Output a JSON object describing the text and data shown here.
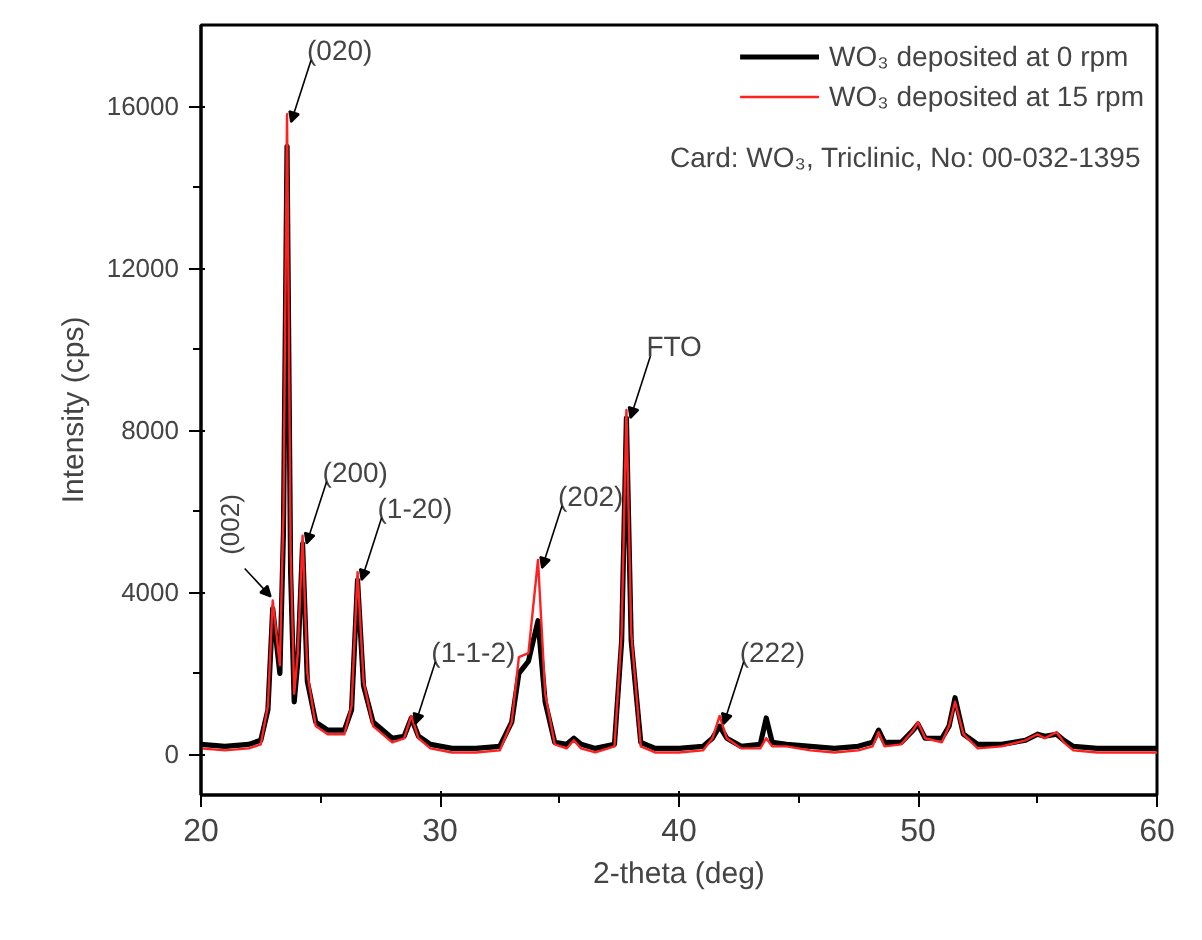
{
  "chart_data": {
    "type": "line",
    "xlabel": "2-theta (deg)",
    "ylabel": "Intensity (cps)",
    "x": [
      20,
      21,
      22,
      22.5,
      22.8,
      23.0,
      23.3,
      23.45,
      23.6,
      23.75,
      23.9,
      24.05,
      24.25,
      24.45,
      24.8,
      25.3,
      26,
      26.3,
      26.55,
      26.8,
      27.2,
      28,
      28.5,
      28.8,
      29.1,
      29.6,
      30.5,
      31.5,
      32.5,
      33.0,
      33.3,
      33.7,
      34.1,
      34.4,
      34.8,
      35.3,
      35.6,
      35.9,
      36.5,
      37.3,
      37.6,
      37.8,
      38.0,
      38.4,
      39,
      40,
      41,
      41.4,
      41.7,
      42.0,
      42.6,
      43.4,
      43.65,
      43.9,
      44.5,
      45.5,
      46.5,
      47.5,
      48.1,
      48.35,
      48.6,
      49.3,
      49.8,
      50.0,
      50.3,
      51.0,
      51.3,
      51.55,
      51.9,
      52.5,
      53.5,
      54.5,
      55.0,
      55.3,
      55.8,
      56.1,
      56.5,
      57.5,
      58.5,
      59.5,
      60
    ],
    "series": [
      {
        "name": "WO₃ deposited at 0 rpm",
        "color": "#000000",
        "values": [
          250,
          200,
          250,
          350,
          1100,
          3600,
          2000,
          5500,
          15000,
          4500,
          1300,
          2300,
          5200,
          1800,
          800,
          600,
          600,
          1100,
          4300,
          1700,
          800,
          400,
          450,
          900,
          450,
          250,
          150,
          150,
          200,
          800,
          2000,
          2300,
          3300,
          1300,
          300,
          250,
          400,
          250,
          150,
          250,
          2800,
          8300,
          2800,
          300,
          150,
          150,
          200,
          400,
          700,
          400,
          200,
          250,
          900,
          300,
          250,
          200,
          150,
          200,
          300,
          600,
          300,
          300,
          600,
          750,
          400,
          400,
          700,
          1400,
          500,
          250,
          250,
          350,
          500,
          450,
          500,
          350,
          200,
          150,
          150,
          150,
          150
        ]
      },
      {
        "name": "WO₃ deposited at 15 rpm",
        "color": "#ff2020",
        "values": [
          150,
          100,
          150,
          250,
          1200,
          3800,
          2200,
          6000,
          15800,
          5000,
          1500,
          2500,
          5400,
          2000,
          700,
          500,
          500,
          1200,
          4500,
          1800,
          700,
          300,
          400,
          950,
          400,
          150,
          50,
          50,
          100,
          800,
          2400,
          2500,
          4800,
          1500,
          250,
          150,
          350,
          150,
          50,
          200,
          3000,
          8500,
          3000,
          200,
          50,
          50,
          100,
          400,
          950,
          400,
          150,
          150,
          400,
          200,
          200,
          100,
          50,
          100,
          200,
          550,
          200,
          250,
          600,
          800,
          400,
          300,
          700,
          1300,
          500,
          150,
          200,
          350,
          500,
          400,
          550,
          300,
          100,
          50,
          50,
          50,
          50
        ]
      }
    ],
    "xlim": [
      20,
      60
    ],
    "xticks": [
      20,
      30,
      40,
      50,
      60
    ],
    "ylim": [
      -1000,
      18000
    ],
    "yticks": [
      0,
      4000,
      8000,
      12000,
      16000
    ],
    "grid": false,
    "legend": "top right",
    "marker": "none",
    "line_style": "solid",
    "annotations": [
      {
        "text": "(002)",
        "x": 23.0,
        "y": 3800
      },
      {
        "text": "(020)",
        "x": 23.6,
        "y": 15800
      },
      {
        "text": "(200)",
        "x": 24.25,
        "y": 5400
      },
      {
        "text": "(1-20)",
        "x": 26.55,
        "y": 4500
      },
      {
        "text": "(1-1-2)",
        "x": 28.8,
        "y": 950
      },
      {
        "text": "(202)",
        "x": 34.1,
        "y": 4800
      },
      {
        "text": "FTO",
        "x": 37.8,
        "y": 8500
      },
      {
        "text": "(222)",
        "x": 41.7,
        "y": 950
      },
      "Card: WO₃, Triclinic, No: 00-032-1395"
    ]
  }
}
